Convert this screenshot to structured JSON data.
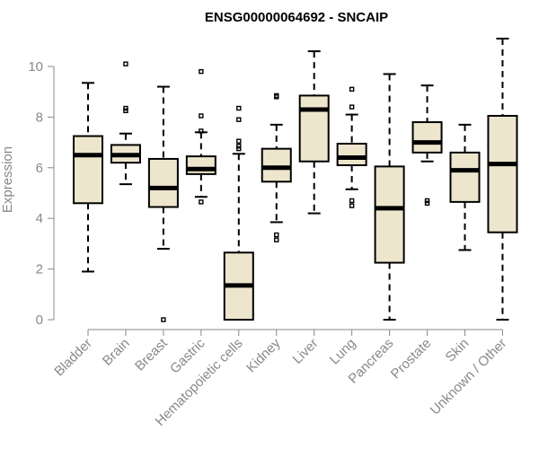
{
  "chart_data": {
    "type": "boxplot",
    "title": "ENSG00000064692 - SNCAIP",
    "xlabel": "",
    "ylabel": "Expression",
    "ylim": [
      0,
      11
    ],
    "yticks": [
      0,
      2,
      4,
      6,
      8,
      10
    ],
    "colors": {
      "box_fill": "#ede6cd",
      "axis": "#888888",
      "stroke": "#000000"
    },
    "categories": [
      "Bladder",
      "Brain",
      "Breast",
      "Gastric",
      "Hematopoietic cells",
      "Kidney",
      "Liver",
      "Lung",
      "Pancreas",
      "Prostate",
      "Skin",
      "Unknown / Other"
    ],
    "series": [
      {
        "name": "Bladder",
        "whisker_low": 1.9,
        "q1": 4.6,
        "median": 6.5,
        "q3": 7.25,
        "whisker_high": 9.35,
        "outliers": []
      },
      {
        "name": "Brain",
        "whisker_low": 5.35,
        "q1": 6.2,
        "median": 6.5,
        "q3": 6.9,
        "whisker_high": 7.35,
        "outliers": [
          8.25,
          8.35,
          10.1
        ]
      },
      {
        "name": "Breast",
        "whisker_low": 2.8,
        "q1": 4.45,
        "median": 5.2,
        "q3": 6.35,
        "whisker_high": 9.2,
        "outliers": [
          0.0
        ]
      },
      {
        "name": "Gastric",
        "whisker_low": 4.85,
        "q1": 5.75,
        "median": 5.95,
        "q3": 6.45,
        "whisker_high": 7.4,
        "outliers": [
          4.65,
          7.45,
          8.05,
          9.8
        ]
      },
      {
        "name": "Hematopoietic cells",
        "whisker_low": 0.0,
        "q1": 0.0,
        "median": 1.35,
        "q3": 2.65,
        "whisker_high": 6.55,
        "outliers": [
          6.75,
          6.85,
          7.05,
          7.9,
          8.35
        ]
      },
      {
        "name": "Kidney",
        "whisker_low": 3.85,
        "q1": 5.45,
        "median": 6.0,
        "q3": 6.75,
        "whisker_high": 7.7,
        "outliers": [
          3.15,
          3.35,
          8.8,
          8.85
        ]
      },
      {
        "name": "Liver",
        "whisker_low": 4.2,
        "q1": 6.25,
        "median": 8.3,
        "q3": 8.85,
        "whisker_high": 10.6,
        "outliers": []
      },
      {
        "name": "Lung",
        "whisker_low": 5.15,
        "q1": 6.1,
        "median": 6.4,
        "q3": 6.95,
        "whisker_high": 8.1,
        "outliers": [
          4.5,
          4.7,
          8.4,
          9.1
        ]
      },
      {
        "name": "Pancreas",
        "whisker_low": 0.0,
        "q1": 2.25,
        "median": 4.4,
        "q3": 6.05,
        "whisker_high": 9.7,
        "outliers": []
      },
      {
        "name": "Prostate",
        "whisker_low": 6.25,
        "q1": 6.6,
        "median": 7.0,
        "q3": 7.8,
        "whisker_high": 9.25,
        "outliers": [
          4.6,
          4.7
        ]
      },
      {
        "name": "Skin",
        "whisker_low": 2.75,
        "q1": 4.65,
        "median": 5.9,
        "q3": 6.6,
        "whisker_high": 7.7,
        "outliers": []
      },
      {
        "name": "Unknown / Other",
        "whisker_low": 0.0,
        "q1": 3.45,
        "median": 6.15,
        "q3": 8.05,
        "whisker_high": 11.1,
        "outliers": []
      }
    ]
  }
}
